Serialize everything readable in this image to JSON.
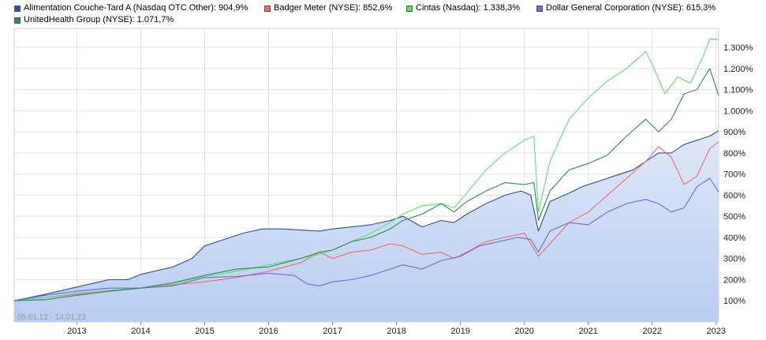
{
  "legend": [
    {
      "label": "Alimentation Couche-Tard A (Nasdaq OTC Other): 904,9%",
      "color": "#2b4fa8"
    },
    {
      "label": "Badger Meter (NYSE): 852,6%",
      "color": "#f06a6a"
    },
    {
      "label": "Cintas (Nasdaq): 1.338,3%",
      "color": "#5fe06a"
    },
    {
      "label": "Dollar General Corporation (NYSE): 615,3%",
      "color": "#6a6ae6"
    },
    {
      "label": "UnitedHealth Group (NYSE): 1.071,7%",
      "color": "#2e8b57"
    }
  ],
  "chart_data": {
    "type": "line",
    "date_range_label": "09.01.12 - 14.01.23",
    "x_ticks": [
      "2013",
      "2014",
      "2015",
      "2016",
      "2017",
      "2018",
      "2019",
      "2020",
      "2021",
      "2022",
      "2023"
    ],
    "y_ticks": [
      "100%",
      "200%",
      "300%",
      "400%",
      "500%",
      "600%",
      "700%",
      "800%",
      "900%",
      "1.000%",
      "1.100%",
      "1.200%",
      "1.300%"
    ],
    "xlim": [
      2012.02,
      2023.04
    ],
    "ylim": [
      0,
      1390
    ],
    "series": [
      {
        "name": "Alimentation Couche-Tard A (Nasdaq OTC Other)",
        "color": "#2b4fa8",
        "area": true,
        "x": [
          2012.02,
          2012.5,
          2013.0,
          2013.5,
          2013.8,
          2014.0,
          2014.5,
          2014.8,
          2015.0,
          2015.3,
          2015.6,
          2015.9,
          2016.2,
          2016.5,
          2016.8,
          2017.0,
          2017.3,
          2017.6,
          2017.9,
          2018.1,
          2018.4,
          2018.7,
          2018.9,
          2019.1,
          2019.4,
          2019.7,
          2019.95,
          2020.1,
          2020.22,
          2020.4,
          2020.7,
          2020.9,
          2021.1,
          2021.4,
          2021.7,
          2021.9,
          2022.1,
          2022.3,
          2022.5,
          2022.7,
          2022.9,
          2023.04
        ],
        "y": [
          100,
          130,
          165,
          200,
          200,
          225,
          260,
          300,
          360,
          390,
          420,
          440,
          440,
          435,
          430,
          440,
          450,
          460,
          480,
          500,
          450,
          480,
          470,
          510,
          560,
          600,
          620,
          600,
          430,
          570,
          610,
          640,
          660,
          690,
          720,
          760,
          800,
          800,
          840,
          860,
          880,
          905
        ]
      },
      {
        "name": "Badger Meter (NYSE)",
        "color": "#f06a6a",
        "area": false,
        "x": [
          2012.02,
          2012.5,
          2013.0,
          2013.5,
          2014.0,
          2014.5,
          2015.0,
          2015.5,
          2016.0,
          2016.5,
          2016.8,
          2017.0,
          2017.3,
          2017.6,
          2017.9,
          2018.1,
          2018.4,
          2018.7,
          2018.9,
          2019.1,
          2019.4,
          2019.7,
          2020.0,
          2020.22,
          2020.4,
          2020.7,
          2021.0,
          2021.3,
          2021.6,
          2021.9,
          2022.1,
          2022.3,
          2022.5,
          2022.7,
          2022.9,
          2023.04
        ],
        "y": [
          100,
          115,
          130,
          145,
          160,
          175,
          190,
          210,
          240,
          280,
          330,
          300,
          330,
          340,
          370,
          360,
          320,
          330,
          300,
          330,
          380,
          400,
          420,
          310,
          370,
          470,
          520,
          600,
          680,
          760,
          830,
          780,
          650,
          690,
          820,
          853
        ]
      },
      {
        "name": "Cintas (Nasdaq)",
        "color": "#5fe06a",
        "area": false,
        "x": [
          2012.02,
          2012.5,
          2013.0,
          2013.5,
          2014.0,
          2014.5,
          2015.0,
          2015.5,
          2016.0,
          2016.5,
          2016.8,
          2017.0,
          2017.3,
          2017.6,
          2017.9,
          2018.1,
          2018.4,
          2018.7,
          2018.9,
          2019.1,
          2019.4,
          2019.7,
          2020.0,
          2020.15,
          2020.22,
          2020.4,
          2020.7,
          2021.0,
          2021.3,
          2021.6,
          2021.9,
          2022.0,
          2022.2,
          2022.4,
          2022.6,
          2022.8,
          2022.9,
          2023.04
        ],
        "y": [
          100,
          115,
          135,
          150,
          160,
          180,
          215,
          240,
          270,
          300,
          320,
          340,
          380,
          420,
          470,
          510,
          550,
          560,
          540,
          610,
          720,
          800,
          860,
          880,
          520,
          760,
          960,
          1060,
          1140,
          1200,
          1280,
          1220,
          1080,
          1160,
          1130,
          1260,
          1340,
          1338
        ]
      },
      {
        "name": "Dollar General Corporation (NYSE)",
        "color": "#6a6ae6",
        "area": false,
        "x": [
          2012.02,
          2012.5,
          2013.0,
          2013.5,
          2014.0,
          2014.5,
          2015.0,
          2015.5,
          2016.0,
          2016.4,
          2016.6,
          2016.8,
          2017.0,
          2017.3,
          2017.6,
          2017.9,
          2018.1,
          2018.4,
          2018.7,
          2019.0,
          2019.3,
          2019.6,
          2019.9,
          2020.1,
          2020.22,
          2020.4,
          2020.7,
          2021.0,
          2021.3,
          2021.6,
          2021.9,
          2022.1,
          2022.3,
          2022.5,
          2022.7,
          2022.9,
          2023.04
        ],
        "y": [
          100,
          125,
          145,
          160,
          160,
          170,
          210,
          215,
          230,
          220,
          180,
          170,
          190,
          200,
          220,
          250,
          270,
          250,
          290,
          310,
          360,
          380,
          400,
          390,
          330,
          430,
          470,
          460,
          520,
          560,
          580,
          560,
          520,
          540,
          640,
          680,
          615
        ]
      },
      {
        "name": "UnitedHealth Group (NYSE)",
        "color": "#2e8b57",
        "area": false,
        "x": [
          2012.02,
          2012.5,
          2013.0,
          2013.5,
          2014.0,
          2014.5,
          2015.0,
          2015.5,
          2016.0,
          2016.5,
          2016.8,
          2017.0,
          2017.3,
          2017.6,
          2017.9,
          2018.1,
          2018.4,
          2018.7,
          2018.9,
          2019.1,
          2019.4,
          2019.7,
          2020.0,
          2020.15,
          2020.22,
          2020.4,
          2020.7,
          2021.0,
          2021.3,
          2021.6,
          2021.9,
          2022.1,
          2022.3,
          2022.5,
          2022.7,
          2022.9,
          2023.04
        ],
        "y": [
          100,
          105,
          125,
          145,
          160,
          185,
          220,
          250,
          260,
          300,
          330,
          340,
          380,
          400,
          440,
          480,
          510,
          560,
          520,
          570,
          620,
          660,
          650,
          660,
          480,
          620,
          720,
          750,
          790,
          880,
          960,
          900,
          960,
          1080,
          1100,
          1200,
          1072
        ]
      }
    ]
  }
}
